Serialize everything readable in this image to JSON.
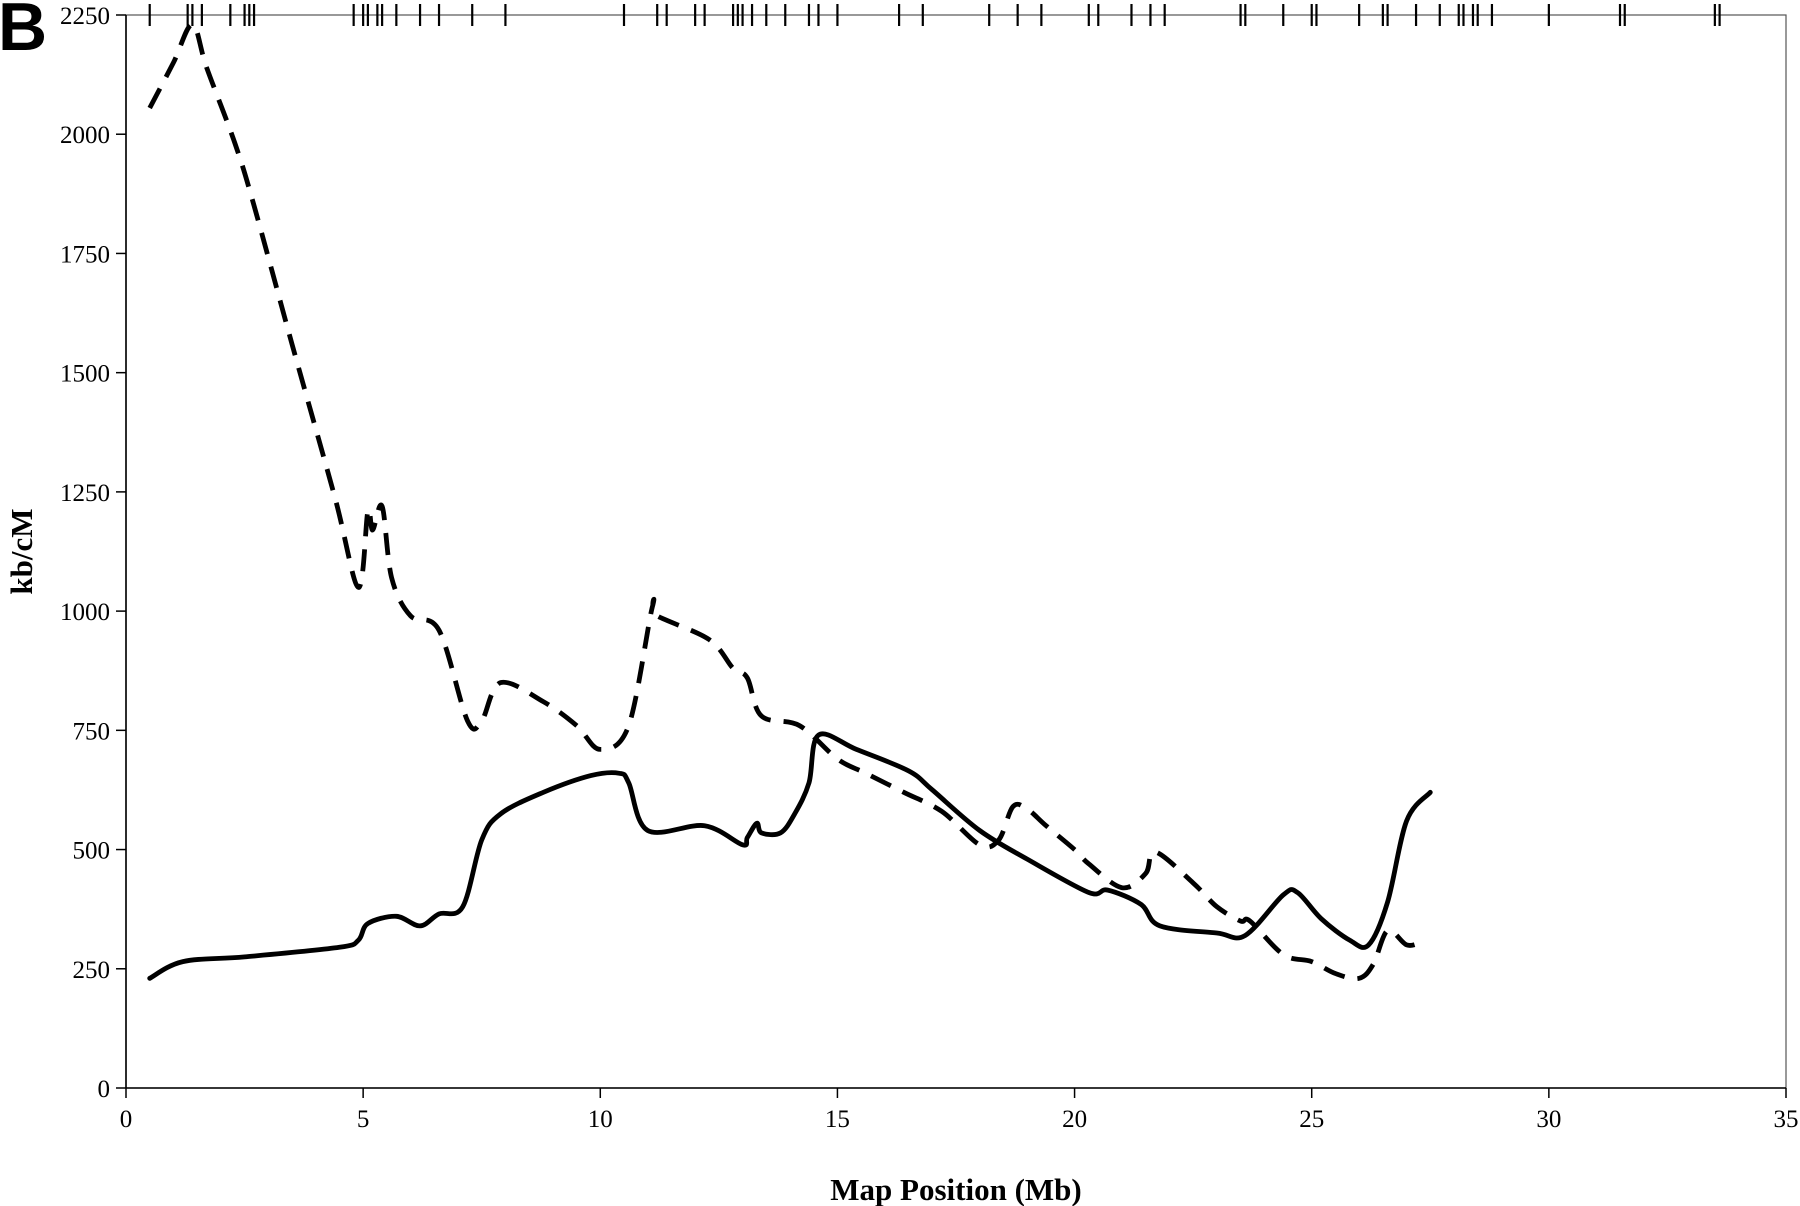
{
  "panel_label": "B",
  "chart_data": {
    "type": "line",
    "title": "",
    "xlabel": "Map Position (Mb)",
    "ylabel": "kb/cM",
    "xlim": [
      0,
      35
    ],
    "ylim": [
      0,
      2250
    ],
    "xticks": [
      0,
      5,
      10,
      15,
      20,
      25,
      30,
      35
    ],
    "yticks": [
      0,
      250,
      500,
      750,
      1000,
      1250,
      1500,
      1750,
      2000,
      2250
    ],
    "grid": false,
    "legend": "none",
    "marker_positions": [
      0.5,
      1.3,
      1.4,
      1.6,
      2.2,
      2.5,
      2.6,
      2.7,
      4.8,
      5.0,
      5.1,
      5.3,
      5.4,
      5.7,
      6.2,
      6.6,
      7.3,
      8.0,
      10.5,
      11.2,
      11.4,
      12.0,
      12.2,
      12.8,
      12.9,
      13.0,
      13.2,
      13.5,
      13.9,
      14.4,
      14.6,
      15.0,
      16.3,
      16.8,
      18.2,
      18.8,
      19.3,
      20.3,
      20.5,
      21.2,
      21.6,
      21.9,
      23.5,
      23.6,
      24.4,
      25.0,
      25.1,
      26.0,
      26.5,
      26.6,
      27.2,
      27.7,
      28.1,
      28.2,
      28.4,
      28.5,
      28.8,
      30.0,
      31.5,
      31.6,
      33.5,
      33.6
    ],
    "series": [
      {
        "style": "solid",
        "color": "#000000",
        "x": [
          0.5,
          1.2,
          2.5,
          4.5,
          4.9,
          5.1,
          5.7,
          6.2,
          6.6,
          7.1,
          7.5,
          7.9,
          8.8,
          9.8,
          10.4,
          10.6,
          11.0,
          12.2,
          13.0,
          13.1,
          13.3,
          13.4,
          13.8,
          14.1,
          14.4,
          14.6,
          15.4,
          16.5,
          17.0,
          18.0,
          19.0,
          20.3,
          20.7,
          21.4,
          21.8,
          23.0,
          23.6,
          24.4,
          24.7,
          25.2,
          25.8,
          26.2,
          26.6,
          27.0,
          27.5
        ],
        "y": [
          230,
          265,
          275,
          295,
          310,
          345,
          360,
          340,
          365,
          380,
          520,
          575,
          620,
          655,
          660,
          640,
          540,
          550,
          510,
          525,
          555,
          535,
          535,
          575,
          640,
          740,
          710,
          665,
          625,
          540,
          480,
          410,
          415,
          385,
          340,
          325,
          320,
          405,
          410,
          355,
          310,
          300,
          390,
          560,
          620
        ]
      },
      {
        "style": "dashed",
        "color": "#000000",
        "x": [
          0.5,
          1.0,
          1.4,
          1.7,
          2.3,
          2.7,
          3.5,
          4.4,
          4.9,
          5.1,
          5.2,
          5.4,
          5.6,
          6.0,
          6.6,
          7.2,
          7.5,
          7.9,
          8.8,
          9.5,
          10.0,
          10.6,
          11.1,
          11.2,
          12.3,
          12.8,
          13.1,
          13.4,
          14.2,
          15.0,
          15.6,
          16.4,
          17.2,
          18.0,
          18.4,
          18.7,
          19.0,
          19.4,
          20.0,
          20.3,
          21.0,
          21.5,
          21.7,
          22.5,
          23.0,
          23.5,
          23.7,
          24.4,
          25.0,
          25.5,
          26.0,
          26.3,
          26.6,
          27.0,
          27.3
        ],
        "y": [
          2055,
          2150,
          2230,
          2140,
          1980,
          1850,
          1560,
          1240,
          1050,
          1210,
          1170,
          1220,
          1070,
          990,
          960,
          770,
          770,
          850,
          810,
          760,
          710,
          760,
          1010,
          990,
          940,
          880,
          860,
          780,
          760,
          690,
          660,
          620,
          580,
          510,
          520,
          590,
          585,
          550,
          500,
          470,
          420,
          450,
          495,
          430,
          380,
          350,
          350,
          280,
          265,
          240,
          230,
          260,
          330,
          300,
          305
        ]
      }
    ]
  }
}
